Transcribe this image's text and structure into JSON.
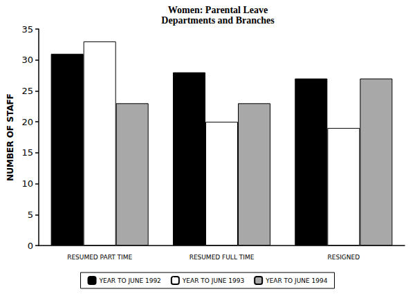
{
  "chart_data": {
    "type": "bar",
    "title": "Women: Parental Leave",
    "subtitle": "Departments and Branches",
    "y_label": "NUMBER OF STAFF",
    "categories": [
      "RESUMED PART TIME",
      "RESUMED FULL TIME",
      "RESIGNED"
    ],
    "series": [
      {
        "name": "YEAR TO JUNE 1992",
        "color": "#000000",
        "values": [
          31,
          28,
          27
        ]
      },
      {
        "name": "YEAR TO JUNE 1993",
        "color": "#ffffff",
        "values": [
          33,
          20,
          19
        ]
      },
      {
        "name": "YEAR TO JUNE 1994",
        "color": "#a8a8a8",
        "values": [
          23,
          23,
          27
        ]
      }
    ],
    "ylim": [
      0,
      35
    ],
    "yticks": [
      0,
      5,
      10,
      15,
      20,
      25,
      30,
      35
    ],
    "grid": false,
    "legend": "bottom"
  }
}
